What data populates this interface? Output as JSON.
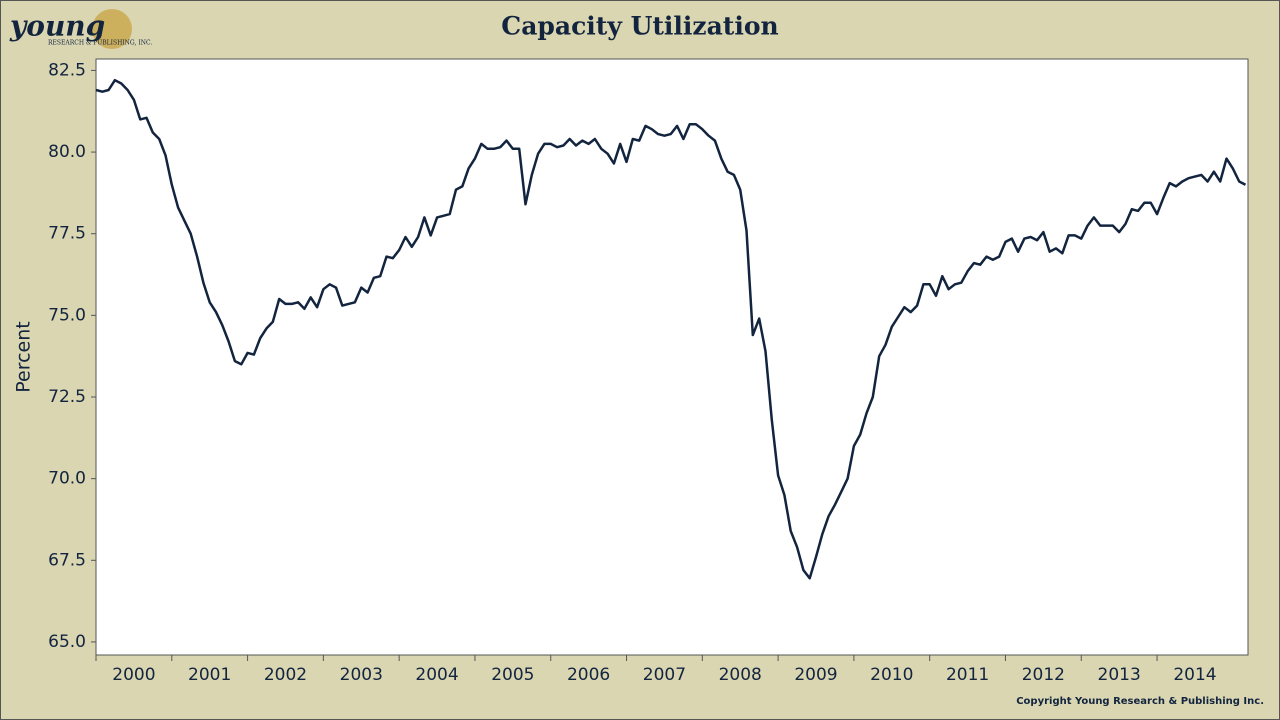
{
  "logo": {
    "name": "young",
    "sub": "RESEARCH & PUBLISHING, INC."
  },
  "copyright": "Copyright Young Research & Publishing Inc.",
  "chart_data": {
    "type": "line",
    "title": "Capacity Utilization",
    "ylabel": "Percent",
    "color": "#13243f",
    "xlim": [
      2000,
      2015.2
    ],
    "ylim": [
      64.6,
      82.85
    ],
    "xticks": [
      {
        "value": 2000,
        "label": "2000"
      },
      {
        "value": 2001,
        "label": "2001"
      },
      {
        "value": 2002,
        "label": "2002"
      },
      {
        "value": 2003,
        "label": "2003"
      },
      {
        "value": 2004,
        "label": "2004"
      },
      {
        "value": 2005,
        "label": "2005"
      },
      {
        "value": 2006,
        "label": "2006"
      },
      {
        "value": 2007,
        "label": "2007"
      },
      {
        "value": 2008,
        "label": "2008"
      },
      {
        "value": 2009,
        "label": "2009"
      },
      {
        "value": 2010,
        "label": "2010"
      },
      {
        "value": 2011,
        "label": "2011"
      },
      {
        "value": 2012,
        "label": "2012"
      },
      {
        "value": 2013,
        "label": "2013"
      },
      {
        "value": 2014,
        "label": "2014"
      }
    ],
    "yticks": [
      {
        "value": 65,
        "label": "65.0"
      },
      67.5,
      {
        "value": 70,
        "label": "70.0"
      },
      72.5,
      {
        "value": 75,
        "label": "75.0"
      },
      77.5,
      {
        "value": 80,
        "label": "80.0"
      },
      82.5
    ],
    "values": [
      81.9,
      81.85,
      81.9,
      82.2,
      82.1,
      81.9,
      81.6,
      81.0,
      81.05,
      80.6,
      80.4,
      79.9,
      79.0,
      78.3,
      77.9,
      77.5,
      76.8,
      76.0,
      75.4,
      75.1,
      74.7,
      74.2,
      73.6,
      73.5,
      73.85,
      73.8,
      74.3,
      74.6,
      74.8,
      75.5,
      75.35,
      75.35,
      75.4,
      75.2,
      75.55,
      75.25,
      75.8,
      75.95,
      75.85,
      75.3,
      75.35,
      75.4,
      75.85,
      75.7,
      76.15,
      76.2,
      76.8,
      76.75,
      77.0,
      77.4,
      77.1,
      77.4,
      78.0,
      77.45,
      78.0,
      78.05,
      78.1,
      78.85,
      78.95,
      79.5,
      79.8,
      80.25,
      80.1,
      80.1,
      80.15,
      80.35,
      80.1,
      80.1,
      78.4,
      79.3,
      79.95,
      80.25,
      80.25,
      80.15,
      80.2,
      80.4,
      80.2,
      80.35,
      80.25,
      80.4,
      80.1,
      79.95,
      79.65,
      80.25,
      79.7,
      80.4,
      80.35,
      80.8,
      80.7,
      80.55,
      80.5,
      80.55,
      80.8,
      80.4,
      80.85,
      80.85,
      80.7,
      80.5,
      80.35,
      79.8,
      79.4,
      79.3,
      78.85,
      77.6,
      74.4,
      74.9,
      73.9,
      71.8,
      70.1,
      69.5,
      68.4,
      67.9,
      67.2,
      66.95,
      67.6,
      68.3,
      68.85,
      69.2,
      69.6,
      70.0,
      71.0,
      71.35,
      72.0,
      72.5,
      73.75,
      74.1,
      74.65,
      74.95,
      75.25,
      75.1,
      75.3,
      75.95,
      75.95,
      75.6,
      76.2,
      75.8,
      75.95,
      76.0,
      76.35,
      76.6,
      76.55,
      76.8,
      76.7,
      76.8,
      77.25,
      77.35,
      76.95,
      77.35,
      77.4,
      77.3,
      77.55,
      76.95,
      77.05,
      76.9,
      77.45,
      77.45,
      77.35,
      77.75,
      78.0,
      77.75,
      77.75,
      77.75,
      77.55,
      77.8,
      78.25,
      78.2,
      78.45,
      78.45,
      78.1,
      78.6,
      79.05,
      78.95,
      79.1,
      79.2,
      79.25,
      79.3,
      79.1,
      79.4,
      79.1,
      79.8,
      79.5,
      79.1,
      79.0
    ]
  }
}
